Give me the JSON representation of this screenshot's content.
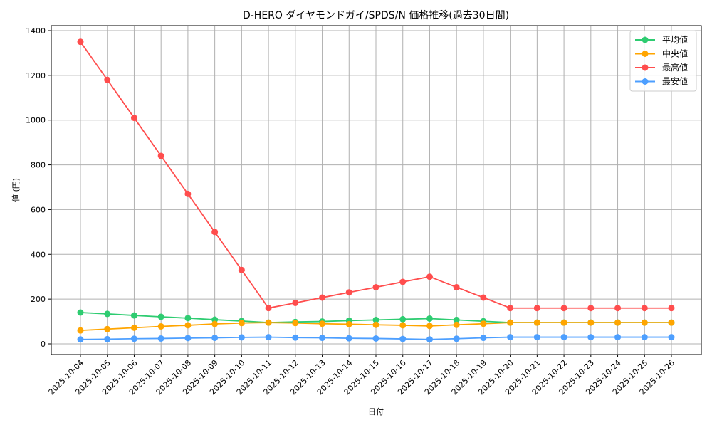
{
  "chart_data": {
    "type": "line",
    "title": "D-HERO ダイヤモンドガイ/SPDS/N 価格推移(過去30日間)",
    "xlabel": "日付",
    "ylabel": "値 (円)",
    "ylim": [
      -45,
      1415
    ],
    "yticks": [
      0,
      200,
      400,
      600,
      800,
      1000,
      1200,
      1400
    ],
    "grid": true,
    "legend_position": "upper right",
    "categories": [
      "2025-10-04",
      "2025-10-05",
      "2025-10-06",
      "2025-10-07",
      "2025-10-08",
      "2025-10-09",
      "2025-10-10",
      "2025-10-11",
      "2025-10-12",
      "2025-10-13",
      "2025-10-14",
      "2025-10-15",
      "2025-10-16",
      "2025-10-17",
      "2025-10-18",
      "2025-10-19",
      "2025-10-20",
      "2025-10-21",
      "2025-10-22",
      "2025-10-23",
      "2025-10-24",
      "2025-10-25",
      "2025-10-26"
    ],
    "series": [
      {
        "name": "平均値",
        "color": "#2ecc71",
        "values": [
          140,
          134,
          127,
          121,
          115,
          108,
          102,
          95,
          98,
          100,
          104,
          107,
          110,
          113,
          107,
          101,
          95,
          95,
          95,
          95,
          95,
          95,
          95
        ]
      },
      {
        "name": "中央値",
        "color": "#ffa500",
        "values": [
          60,
          66,
          72,
          78,
          83,
          89,
          93,
          95,
          93,
          90,
          88,
          85,
          83,
          80,
          85,
          90,
          95,
          95,
          95,
          95,
          95,
          95,
          95
        ]
      },
      {
        "name": "最高値",
        "color": "#ff4d4d",
        "values": [
          1350,
          1180,
          1010,
          840,
          670,
          500,
          330,
          160,
          183,
          207,
          230,
          253,
          277,
          300,
          253,
          207,
          160,
          160,
          160,
          160,
          160,
          160,
          160
        ]
      },
      {
        "name": "最安値",
        "color": "#4d9fff",
        "values": [
          20,
          21,
          23,
          24,
          26,
          27,
          29,
          30,
          28,
          27,
          25,
          24,
          22,
          20,
          23,
          27,
          30,
          30,
          30,
          30,
          30,
          30,
          30
        ]
      }
    ]
  }
}
